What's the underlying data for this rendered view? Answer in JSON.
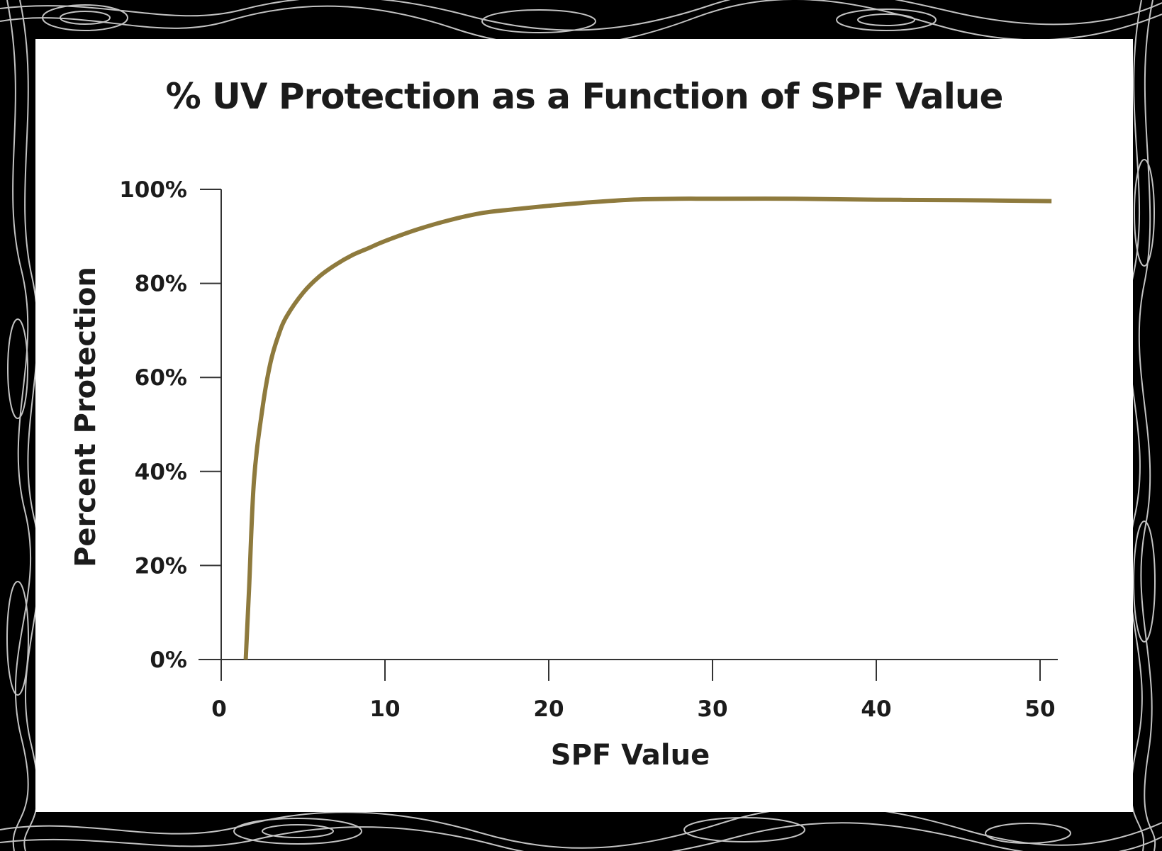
{
  "chart_data": {
    "type": "line",
    "title": "% UV Protection as a Function of SPF Value",
    "xlabel": "SPF Value",
    "ylabel": "Percent Protection",
    "xlim": [
      0,
      50
    ],
    "ylim": [
      0,
      100
    ],
    "x_ticks": [
      0,
      10,
      20,
      30,
      40,
      50
    ],
    "x_tick_labels": [
      "0",
      "10",
      "20",
      "30",
      "40",
      "50"
    ],
    "y_ticks": [
      0,
      20,
      40,
      60,
      80,
      100
    ],
    "y_tick_labels": [
      "0%",
      "20%",
      "40%",
      "60%",
      "80%",
      "100%"
    ],
    "grid": false,
    "legend": "none",
    "series": [
      {
        "color": "#8e7a3d",
        "x": [
          1.5,
          1.7,
          2,
          2.5,
          3,
          3.5,
          4,
          5,
          6,
          7,
          8,
          9,
          10,
          12,
          14,
          16,
          18,
          20,
          22,
          25,
          28,
          30,
          35,
          40,
          45,
          50.7
        ],
        "y": [
          0,
          15,
          38,
          53,
          63,
          69,
          73,
          78,
          81.5,
          84,
          86,
          87.5,
          89,
          91.5,
          93.5,
          95,
          95.8,
          96.5,
          97.1,
          97.8,
          98,
          98,
          98,
          97.8,
          97.7,
          97.5
        ]
      }
    ]
  }
}
